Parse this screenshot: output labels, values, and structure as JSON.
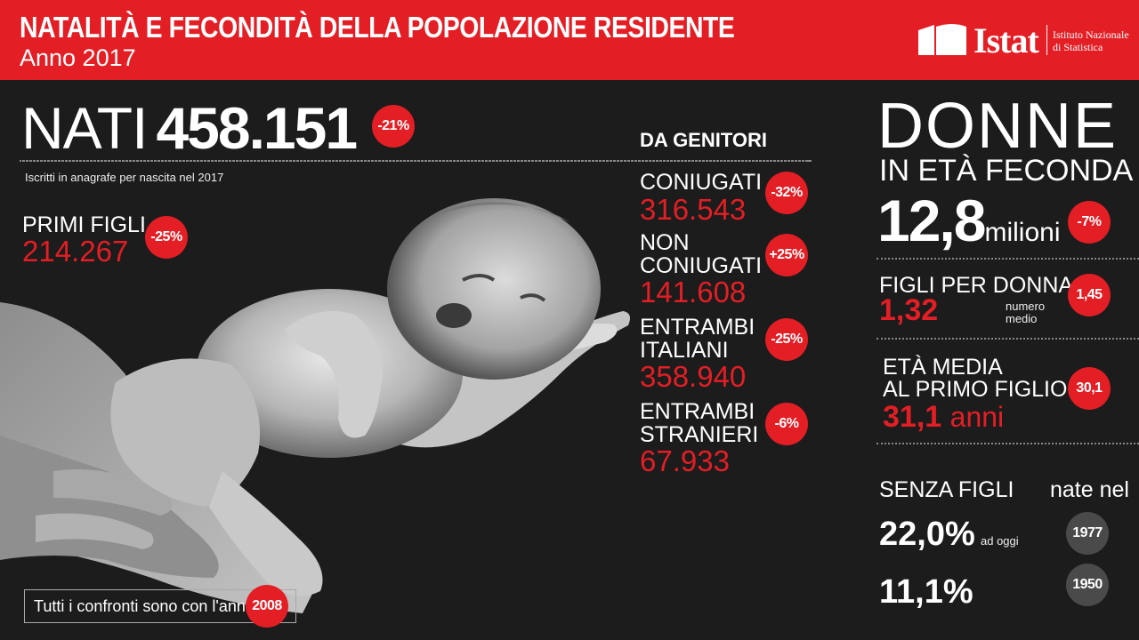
{
  "header": {
    "title": "NATALITÀ E FECONDITÀ DELLA POPOLAZIONE RESIDENTE",
    "subtitle": "Anno 2017",
    "logo_word": "Istat",
    "logo_institute_line1": "Istituto Nazionale",
    "logo_institute_line2": "di Statistica",
    "bg_color": "#e31e25"
  },
  "nati": {
    "label": "NATI",
    "value": "458.151",
    "change": "-21%",
    "note": "Iscritti in anagrafe per nascita nel 2017"
  },
  "primi_figli": {
    "label": "PRIMI FIGLI",
    "value": "214.267",
    "change": "-25%"
  },
  "genitori": {
    "heading": "DA GENITORI",
    "items": [
      {
        "label_line1": "CONIUGATI",
        "label_line2": "",
        "value": "316.543",
        "change": "-32%"
      },
      {
        "label_line1": "NON",
        "label_line2": "CONIUGATI",
        "value": "141.608",
        "change": "+25%"
      },
      {
        "label_line1": "ENTRAMBI",
        "label_line2": "ITALIANI",
        "value": "358.940",
        "change": "-25%"
      },
      {
        "label_line1": "ENTRAMBI",
        "label_line2": "STRANIERI",
        "value": "67.933",
        "change": "-6%"
      }
    ]
  },
  "confronti": {
    "text": "Tutti i confronti sono con l'anno",
    "year": "2008"
  },
  "donne": {
    "title": "DONNE",
    "subtitle": "IN ETÀ FECONDA",
    "value": "12,8",
    "unit": "milioni",
    "change": "-7%"
  },
  "figli_per_donna": {
    "label": "FIGLI PER DONNA",
    "value": "1,32",
    "note_line1": "numero",
    "note_line2": "medio",
    "compare": "1,45"
  },
  "eta_media": {
    "label_line1": "ETÀ MEDIA",
    "label_line2": "AL PRIMO FIGLIO",
    "value": "31,1",
    "unit": "anni",
    "compare": "30,1"
  },
  "senza_figli": {
    "label": "SENZA FIGLI",
    "header_right": "nate nel",
    "rows": [
      {
        "value": "22,0%",
        "note": "ad oggi",
        "year": "1977"
      },
      {
        "value": "11,1%",
        "note": "",
        "year": "1950"
      }
    ]
  },
  "photo": {
    "subject": "newborn-baby-on-hands"
  }
}
